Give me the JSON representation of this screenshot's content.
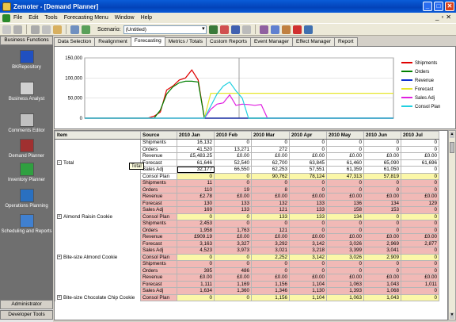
{
  "window": {
    "title": "Zemoter - [Demand Planner]",
    "min": "_",
    "max": "□",
    "close": "✕"
  },
  "menu": {
    "items": [
      "File",
      "Edit",
      "Tools",
      "Forecasting Menu",
      "Window",
      "Help"
    ],
    "mdi": [
      "_",
      "▫",
      "✕"
    ]
  },
  "toolbar": {
    "scenario_label": "Scenario:",
    "scenario_value": "(Untitled)"
  },
  "sidebar": {
    "header": "Business Functions",
    "items": [
      "BKRepository",
      "Business Analyst",
      "Comments Editor",
      "Demand Planner",
      "Inventory Planner",
      "Operations Planning",
      "Scheduling and Reports"
    ],
    "footer1": "Administrator",
    "footer2": "Developer Tools"
  },
  "tabs": [
    "Data Selection",
    "Realignment",
    "Forecasting",
    "Metrics / Totals",
    "Custom Reports",
    "Event Manager",
    "Effect Manager",
    "Report"
  ],
  "chart_data": {
    "type": "line",
    "ylim": [
      0,
      150000
    ],
    "yticks": [
      "150,000",
      "100,000",
      "50,000",
      "0"
    ],
    "series": [
      {
        "name": "Shipments",
        "color": "#e00000",
        "values": [
          0,
          0,
          0,
          0,
          0,
          0,
          0,
          0,
          0,
          0,
          0,
          5000,
          15000,
          70000,
          80000,
          95000,
          100000,
          120000,
          95000,
          0,
          0,
          0,
          0,
          0,
          0,
          0,
          0,
          0,
          0,
          0,
          0,
          0,
          0,
          0,
          0,
          0,
          0,
          0,
          0,
          0,
          0,
          0,
          0,
          0,
          0,
          0,
          0,
          0,
          0,
          0
        ]
      },
      {
        "name": "Orders",
        "color": "#008000",
        "values": [
          0,
          0,
          0,
          0,
          0,
          0,
          0,
          0,
          0,
          0,
          0,
          0,
          20000,
          60000,
          78000,
          88000,
          92000,
          92000,
          90000,
          0,
          0,
          0,
          0,
          0,
          0,
          0,
          0,
          0,
          0,
          0,
          0,
          0,
          0,
          0,
          0,
          0,
          0,
          0,
          0,
          0,
          0,
          0,
          0,
          0,
          0,
          0,
          0,
          0,
          0,
          0
        ]
      },
      {
        "name": "Revenue",
        "color": "#1030d0",
        "values": [
          0,
          0,
          0,
          0,
          0,
          0,
          0,
          0,
          0,
          0,
          0,
          0,
          0,
          0,
          0,
          0,
          0,
          0,
          0,
          0,
          0,
          0,
          0,
          0,
          0,
          0,
          0,
          0,
          0,
          0,
          0,
          0,
          0,
          0,
          0,
          0,
          0,
          0,
          0,
          0,
          0,
          0,
          0,
          0,
          0,
          0,
          0,
          0,
          0,
          0
        ]
      },
      {
        "name": "Forecast",
        "color": "#e6e62a",
        "values": [
          0,
          0,
          0,
          0,
          0,
          0,
          0,
          0,
          0,
          0,
          0,
          0,
          0,
          0,
          0,
          0,
          0,
          0,
          0,
          0,
          62000,
          62000,
          62000,
          62000,
          62000,
          62000,
          62000,
          62000,
          62000,
          62000,
          62000,
          62000,
          62000,
          62000,
          62000,
          62000,
          62000,
          62000,
          62000,
          62000,
          62000,
          62000,
          62000,
          62000,
          62000,
          62000,
          62000,
          62000,
          62000,
          62000
        ]
      },
      {
        "name": "Sales Adj",
        "color": "#e020e0",
        "values": [
          0,
          0,
          0,
          0,
          0,
          0,
          0,
          0,
          0,
          0,
          0,
          0,
          0,
          0,
          0,
          0,
          0,
          0,
          0,
          0,
          22000,
          35000,
          38000,
          58000,
          32000,
          35000,
          34000,
          32000,
          34000,
          0,
          0,
          0,
          0,
          0,
          0,
          0,
          0,
          0,
          0,
          0,
          0,
          0,
          0,
          0,
          0,
          0,
          0,
          0,
          0,
          0
        ]
      },
      {
        "name": "Consol Plan",
        "color": "#20d0e0",
        "values": [
          0,
          0,
          0,
          0,
          0,
          0,
          0,
          0,
          0,
          0,
          0,
          0,
          0,
          0,
          0,
          0,
          0,
          0,
          0,
          0,
          30000,
          60000,
          80000,
          90000,
          68000,
          50000,
          0,
          0,
          0,
          0,
          0,
          0,
          0,
          0,
          0,
          0,
          0,
          0,
          0,
          0,
          0,
          0,
          0,
          0,
          0,
          0,
          0,
          0,
          0,
          0
        ]
      }
    ]
  },
  "grid": {
    "headers": [
      "Item",
      "Source",
      "2010 Jan",
      "2010 Feb",
      "2010 Mar",
      "2010 Apr",
      "2010 May",
      "2010 Jun",
      "2010 Jul"
    ],
    "tooltip": "Total",
    "groups": [
      {
        "label": "Total",
        "style": "white",
        "rows": [
          [
            "Shipments",
            "16,132",
            "0",
            "0",
            "0",
            "0",
            "0",
            "0"
          ],
          [
            "Orders",
            "41,520",
            "13,271",
            "272",
            "0",
            "0",
            "0",
            "0"
          ],
          [
            "Revenue",
            "£5,483.25",
            "£0.00",
            "£0.00",
            "£0.00",
            "£0.00",
            "£0.00",
            "£0.00"
          ],
          [
            "Forecast",
            "61,646",
            "52,540",
            "62,700",
            "63,845",
            "61,460",
            "65,090",
            "61,696"
          ],
          [
            "Sales Adj",
            "32,177",
            "66,550",
            "62,253",
            "57,551",
            "61,359",
            "61,050",
            "0"
          ],
          [
            "Consol Plan",
            "0",
            "0",
            "90,762",
            "78,124",
            "47,313",
            "57,819",
            "0"
          ]
        ]
      },
      {
        "label": "Almond Raisin Cookie",
        "style": "pink",
        "rows": [
          [
            "Shipments",
            "11",
            "0",
            "0",
            "0",
            "0",
            "0",
            "0"
          ],
          [
            "Orders",
            "110",
            "19",
            "8",
            "0",
            "0",
            "0",
            "0"
          ],
          [
            "Revenue",
            "£2.78",
            "£0.00",
            "£0.00",
            "£0.00",
            "£0.00",
            "£0.00",
            "£0.00"
          ],
          [
            "Forecast",
            "130",
            "133",
            "132",
            "133",
            "136",
            "134",
            "129"
          ],
          [
            "Sales Adj",
            "169",
            "133",
            "121",
            "133",
            "158",
            "153",
            "0"
          ],
          [
            "Consol Plan",
            "0",
            "0",
            "133",
            "133",
            "134",
            "0",
            "0"
          ]
        ]
      },
      {
        "label": "Bite-size Almond Cookie",
        "style": "pink",
        "rows": [
          [
            "Shipments",
            "2,453",
            "0",
            "0",
            "0",
            "0",
            "0",
            "0"
          ],
          [
            "Orders",
            "1,958",
            "1,763",
            "121",
            "0",
            "0",
            "0",
            "0"
          ],
          [
            "Revenue",
            "£909.19",
            "£0.00",
            "£0.00",
            "£0.00",
            "£0.00",
            "£0.00",
            "£0.00"
          ],
          [
            "Forecast",
            "3,163",
            "3,327",
            "3,292",
            "3,142",
            "3,026",
            "2,969",
            "2,877"
          ],
          [
            "Sales Adj",
            "4,523",
            "3,973",
            "3,021",
            "3,218",
            "3,399",
            "3,041",
            "0"
          ],
          [
            "Consol Plan",
            "0",
            "0",
            "2,252",
            "3,142",
            "3,026",
            "2,909",
            "0"
          ]
        ]
      },
      {
        "label": "Bite-size Chocolate Chip Cookie",
        "style": "pink",
        "rows": [
          [
            "Shipments",
            "0",
            "0",
            "0",
            "0",
            "0",
            "0",
            "0"
          ],
          [
            "Orders",
            "395",
            "486",
            "0",
            "0",
            "0",
            "0",
            "0"
          ],
          [
            "Revenue",
            "£0.00",
            "£0.00",
            "£0.00",
            "£0.00",
            "£0.00",
            "£0.00",
            "£0.00"
          ],
          [
            "Forecast",
            "1,111",
            "1,169",
            "1,156",
            "1,104",
            "1,063",
            "1,043",
            "1,011"
          ],
          [
            "Sales Adj",
            "1,634",
            "1,360",
            "1,346",
            "1,130",
            "1,393",
            "1,068",
            "0"
          ],
          [
            "Consol Plan",
            "0",
            "0",
            "1,156",
            "1,104",
            "1,063",
            "1,043",
            "0"
          ]
        ]
      }
    ]
  }
}
